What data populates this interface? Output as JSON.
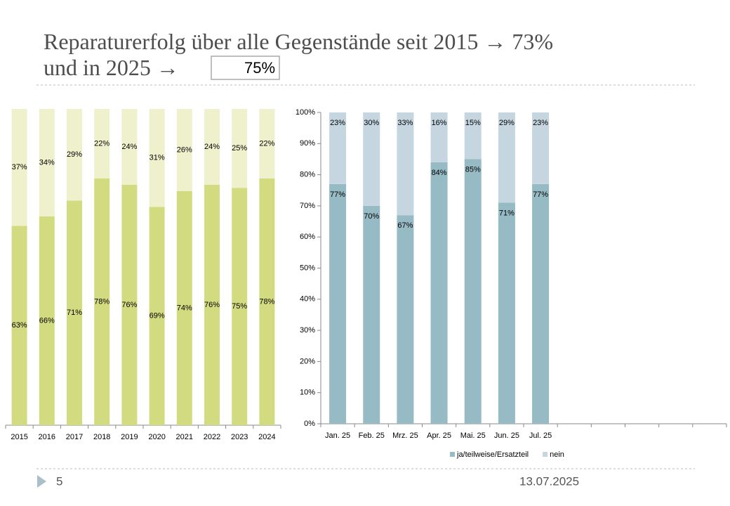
{
  "slide": {
    "title_line1": "Reparaturerfolg über alle Gegenstände seit 2015 → 73%",
    "title_line2": "und in 2025 →",
    "title_box": "75%",
    "page_number": "5",
    "date": "13.07.2025"
  },
  "chart_data": [
    {
      "type": "bar",
      "stacked": true,
      "categories": [
        "2015",
        "2016",
        "2017",
        "2018",
        "2019",
        "2020",
        "2021",
        "2022",
        "2023",
        "2024"
      ],
      "ylim": [
        0,
        100
      ],
      "series": [
        {
          "color": "#d3db80",
          "values": [
            63,
            66,
            71,
            78,
            76,
            69,
            74,
            76,
            75,
            78
          ],
          "value_labels": [
            "63%",
            "66%",
            "71%",
            "78%",
            "76%",
            "69%",
            "74%",
            "76%",
            "75%",
            "78%"
          ]
        },
        {
          "color": "#eff1cc",
          "values": [
            37,
            34,
            29,
            22,
            24,
            31,
            26,
            24,
            25,
            22
          ],
          "value_labels": [
            "37%",
            "34%",
            "29%",
            "22%",
            "24%",
            "31%",
            "26%",
            "24%",
            "25%",
            "22%"
          ]
        }
      ]
    },
    {
      "type": "bar",
      "stacked": true,
      "categories": [
        "Jan. 25",
        "Feb. 25",
        "Mrz. 25",
        "Apr. 25",
        "Mai. 25",
        "Jun. 25",
        "Jul. 25",
        null,
        null,
        null,
        null,
        null
      ],
      "ylim": [
        0,
        100
      ],
      "yticks": [
        {
          "value": 0,
          "label": "0%"
        },
        {
          "value": 10,
          "label": "10%"
        },
        {
          "value": 20,
          "label": "20%"
        },
        {
          "value": 30,
          "label": "30%"
        },
        {
          "value": 40,
          "label": "40%"
        },
        {
          "value": 50,
          "label": "50%"
        },
        {
          "value": 60,
          "label": "60%"
        },
        {
          "value": 70,
          "label": "70%"
        },
        {
          "value": 80,
          "label": "80%"
        },
        {
          "value": 90,
          "label": "90%"
        },
        {
          "value": 100,
          "label": "100%"
        }
      ],
      "legend": "bottom",
      "series": [
        {
          "name": "ja/teilweise/Ersatzteil",
          "color": "#97bbc4",
          "values": [
            77,
            70,
            67,
            84,
            85,
            71,
            77,
            null,
            null,
            null,
            null,
            null
          ],
          "value_labels": [
            "77%",
            "70%",
            "67%",
            "84%",
            "85%",
            "71%",
            "77%",
            null,
            null,
            null,
            null,
            null
          ]
        },
        {
          "name": "nein",
          "color": "#c6d6e0",
          "values": [
            23,
            30,
            33,
            16,
            15,
            29,
            23,
            null,
            null,
            null,
            null,
            null
          ],
          "value_labels": [
            "23%",
            "30%",
            "33%",
            "16%",
            "15%",
            "29%",
            "23%",
            null,
            null,
            null,
            null,
            null
          ]
        }
      ]
    }
  ]
}
